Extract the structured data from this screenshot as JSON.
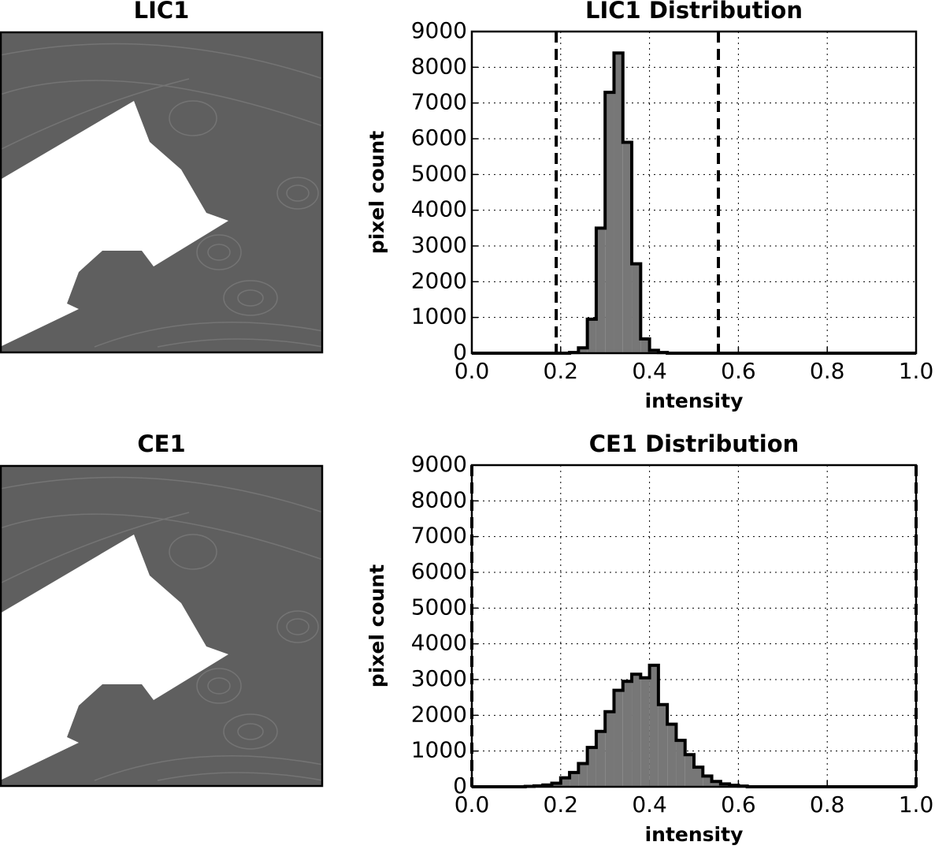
{
  "images": [
    {
      "title": "LIC1"
    },
    {
      "title": "CE1"
    }
  ],
  "chart_data": [
    {
      "type": "histogram",
      "title": "LIC1 Distribution",
      "x_label": "intensity",
      "y_label": "pixel count",
      "bins": [
        0,
        0.02,
        0.04,
        0.06,
        0.08,
        0.1,
        0.12,
        0.14,
        0.16,
        0.18,
        0.2,
        0.22,
        0.24,
        0.26,
        0.28,
        0.3,
        0.32,
        0.34,
        0.36,
        0.38,
        0.4,
        0.42,
        0.44,
        0.46,
        0.48,
        0.5,
        0.52,
        0.54,
        0.56,
        0.58,
        0.6,
        0.62,
        0.64,
        0.66,
        0.68,
        0.7,
        0.72,
        0.74,
        0.76,
        0.78,
        0.8,
        0.82,
        0.84,
        0.86,
        0.88,
        0.9,
        0.92,
        0.94,
        0.96,
        0.98,
        1
      ],
      "values": [
        0,
        0,
        0,
        0,
        0,
        0,
        0,
        0,
        0,
        0,
        0,
        20,
        150,
        950,
        3500,
        7300,
        8400,
        5900,
        2500,
        400,
        80,
        20,
        0,
        0,
        0,
        0,
        0,
        0,
        0,
        0,
        0,
        0,
        0,
        0,
        0,
        0,
        0,
        0,
        0,
        0,
        0,
        0,
        0,
        0,
        0,
        0,
        0,
        0,
        0,
        0
      ],
      "color": "#777777",
      "vlines": [
        0.19,
        0.555
      ],
      "xlim": [
        0,
        1
      ],
      "xticks": [
        {
          "value": 0,
          "label": "0.0"
        },
        0.2,
        0.4,
        0.6,
        0.8,
        {
          "value": 1,
          "label": "1.0"
        }
      ],
      "ylim": [
        0,
        9000
      ],
      "yticks": [
        0,
        1000,
        2000,
        3000,
        4000,
        5000,
        6000,
        7000,
        8000,
        9000
      ],
      "grid": true
    },
    {
      "type": "histogram",
      "title": "CE1 Distribution",
      "x_label": "intensity",
      "y_label": "pixel count",
      "bins": [
        0,
        0.02,
        0.04,
        0.06,
        0.08,
        0.1,
        0.12,
        0.14,
        0.16,
        0.18,
        0.2,
        0.22,
        0.24,
        0.26,
        0.28,
        0.3,
        0.32,
        0.34,
        0.36,
        0.38,
        0.4,
        0.42,
        0.44,
        0.46,
        0.48,
        0.5,
        0.52,
        0.54,
        0.56,
        0.58,
        0.6,
        0.62,
        0.64,
        0.66,
        0.68,
        0.7,
        0.72,
        0.74,
        0.76,
        0.78,
        0.8,
        0.82,
        0.84,
        0.86,
        0.88,
        0.9,
        0.92,
        0.94,
        0.96,
        0.98,
        1
      ],
      "values": [
        0,
        0,
        0,
        0,
        0,
        0,
        10,
        25,
        50,
        100,
        250,
        400,
        650,
        1100,
        1550,
        2100,
        2700,
        2950,
        3150,
        3050,
        3400,
        2300,
        1750,
        1300,
        900,
        550,
        300,
        150,
        80,
        40,
        20,
        0,
        0,
        0,
        0,
        0,
        0,
        0,
        0,
        0,
        0,
        0,
        0,
        0,
        0,
        0,
        0,
        0,
        0,
        0
      ],
      "color": "#777777",
      "vlines": [
        0,
        1
      ],
      "xlim": [
        0,
        1
      ],
      "xticks": [
        {
          "value": 0,
          "label": "0.0"
        },
        0.2,
        0.4,
        0.6,
        0.8,
        {
          "value": 1,
          "label": "1.0"
        }
      ],
      "ylim": [
        0,
        9000
      ],
      "yticks": [
        0,
        1000,
        2000,
        3000,
        4000,
        5000,
        6000,
        7000,
        8000,
        9000
      ],
      "grid": true
    }
  ]
}
